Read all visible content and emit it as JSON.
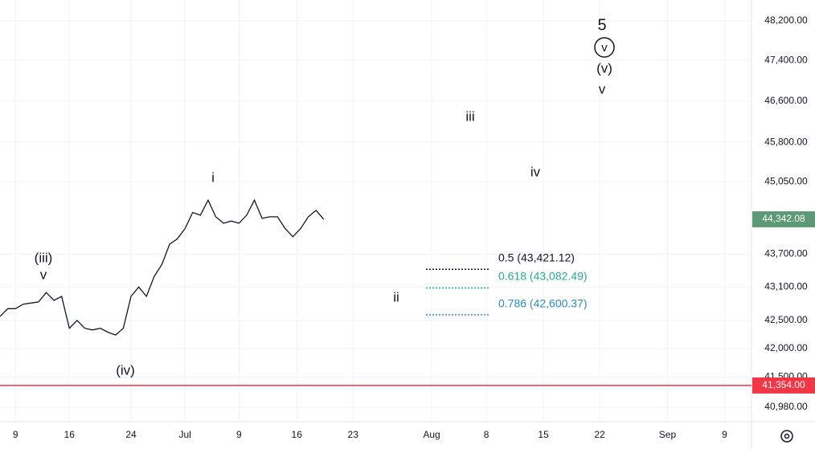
{
  "chart_data": {
    "type": "line",
    "x": [
      -2,
      -1,
      0,
      1,
      2,
      3,
      4,
      5,
      6,
      7,
      8,
      9,
      10,
      11,
      12,
      13,
      14,
      15,
      16,
      17,
      18,
      19,
      20,
      21,
      22,
      23,
      24,
      25,
      26,
      27,
      28,
      29,
      30,
      31,
      32,
      33,
      34,
      35,
      36,
      37,
      38,
      39,
      40
    ],
    "values": [
      42570,
      42710,
      42710,
      42790,
      42810,
      42830,
      43000,
      42860,
      42930,
      42360,
      42500,
      42360,
      42330,
      42360,
      42290,
      42240,
      42360,
      42930,
      43100,
      42930,
      43290,
      43510,
      43880,
      43980,
      44170,
      44470,
      44420,
      44700,
      44390,
      44270,
      44310,
      44270,
      44420,
      44700,
      44360,
      44390,
      44390,
      44170,
      44020,
      44170,
      44390,
      44510,
      44342.08
    ],
    "color": "#131722",
    "log_scale": true,
    "ylim": [
      40730,
      48620
    ],
    "yticks": [
      {
        "value": 40980,
        "label": "40,980.00"
      },
      {
        "value": 41500,
        "label": "41,500.00"
      },
      {
        "value": 42000,
        "label": "42,000.00"
      },
      {
        "value": 42500,
        "label": "42,500.00"
      },
      {
        "value": 43100,
        "label": "43,100.00"
      },
      {
        "value": 43700,
        "label": "43,700.00"
      },
      {
        "value": 45050,
        "label": "45,050.00"
      },
      {
        "value": 45800,
        "label": "45,800.00"
      },
      {
        "value": 46600,
        "label": "46,600.00"
      },
      {
        "value": 47400,
        "label": "47,400.00"
      },
      {
        "value": 48200,
        "label": "48,200.00"
      }
    ],
    "xlim": [
      -2,
      95.5
    ],
    "xticks": [
      {
        "value": 0,
        "label": "9"
      },
      {
        "value": 7,
        "label": "16"
      },
      {
        "value": 15,
        "label": "24"
      },
      {
        "value": 22,
        "label": "Jul"
      },
      {
        "value": 29,
        "label": "9"
      },
      {
        "value": 36.5,
        "label": "16"
      },
      {
        "value": 43.8,
        "label": "23"
      },
      {
        "value": 54,
        "label": "Aug"
      },
      {
        "value": 61.1,
        "label": "8"
      },
      {
        "value": 68.5,
        "label": "15"
      },
      {
        "value": 75.8,
        "label": "22"
      },
      {
        "value": 84.6,
        "label": "Sep"
      },
      {
        "value": 92,
        "label": "9"
      }
    ],
    "grid": true,
    "last_price": {
      "value": 44342.08,
      "label": "44,342.08",
      "color": "#5b9a74"
    },
    "horizontal_line": {
      "value": 41354,
      "label": "41,354.00",
      "color": "#f23645"
    },
    "fib_levels": [
      {
        "value": 43421.12,
        "label": "0.5 (43,421.12)",
        "color": "#131722"
      },
      {
        "value": 43082.49,
        "label": "0.618 (43,082.49)",
        "color": "#22ab94"
      },
      {
        "value": 42600.37,
        "label": "0.786 (42,600.37)",
        "color": "#2b8cc4"
      }
    ],
    "annotations": [
      "5",
      "v",
      "(v)",
      "v",
      "iii",
      "iv",
      "i",
      "(iii)",
      "v",
      "(iv)",
      "ii"
    ]
  }
}
